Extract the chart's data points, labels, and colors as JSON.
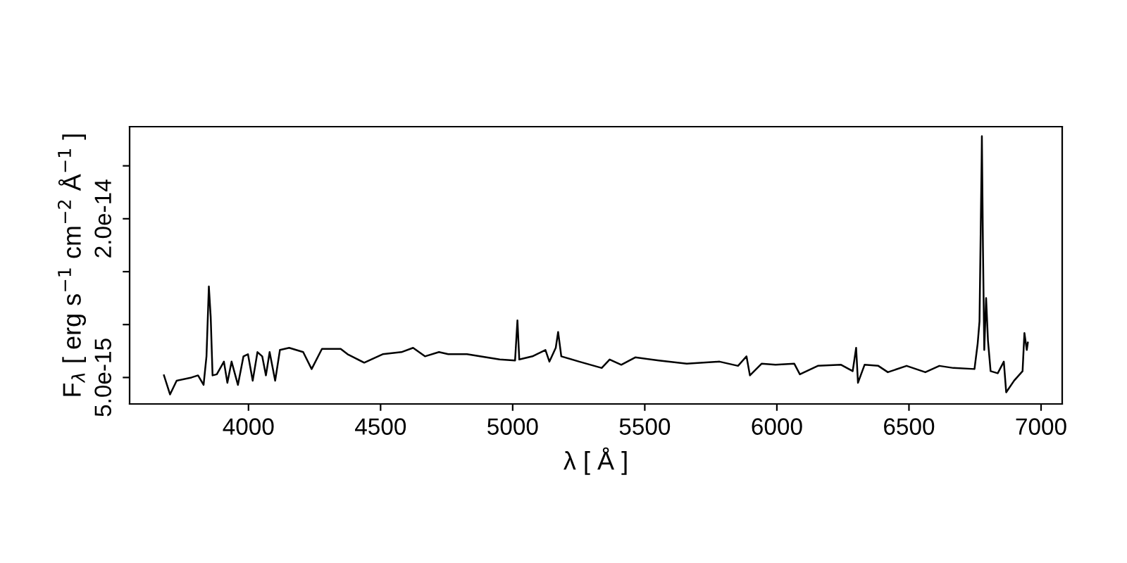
{
  "chart_data": {
    "type": "line",
    "xlabel": "λ [ Å ]",
    "ylabel": "F$_{λ}$ [ erg s$^{−1}$ cm$^{−2}$ Å$^{−1}$ ]",
    "xlim": [
      3550,
      7080
    ],
    "xticks": [
      4000,
      4500,
      5000,
      5500,
      6000,
      6500,
      7000
    ],
    "ylim": [
      2.5e-15,
      2.87e-14
    ],
    "yticks": [
      {
        "value": 5e-15,
        "label": "5.0e-15"
      },
      {
        "value": 1e-14,
        "label": null
      },
      {
        "value": 1.5e-14,
        "label": null
      },
      {
        "value": 2e-14,
        "label": "2.0e-14"
      },
      {
        "value": 2.5e-14,
        "label": null
      }
    ],
    "grid": false,
    "legend": false,
    "marker": "none",
    "line_style": "solid",
    "series": [
      {
        "color": "#000000",
        "x": [
          3680,
          3703,
          3728,
          3784,
          3809,
          3830,
          3841,
          3850,
          3857,
          3864,
          3880,
          3907,
          3920,
          3936,
          3960,
          3981,
          3998,
          4016,
          4034,
          4052,
          4066,
          4080,
          4101,
          4119,
          4154,
          4207,
          4239,
          4278,
          4349,
          4375,
          4438,
          4508,
          4579,
          4623,
          4668,
          4721,
          4756,
          4827,
          4951,
          5009,
          5018,
          5025,
          5075,
          5124,
          5139,
          5163,
          5172,
          5184,
          5252,
          5337,
          5367,
          5411,
          5464,
          5553,
          5659,
          5783,
          5853,
          5885,
          5898,
          5942,
          5995,
          6066,
          6087,
          6155,
          6243,
          6287,
          6300,
          6307,
          6332,
          6384,
          6420,
          6491,
          6562,
          6615,
          6668,
          6748,
          6760,
          6767,
          6775,
          6776,
          6780,
          6785,
          6792,
          6799,
          6809,
          6836,
          6859,
          6868,
          6898,
          6930,
          6937,
          6946,
          6950
        ],
        "values": [
          5.2e-15,
          3.4e-15,
          4.7e-15,
          5e-15,
          5.2e-15,
          4.3e-15,
          7e-15,
          1.36e-14,
          1.07e-14,
          5.2e-15,
          5.3e-15,
          6.5e-15,
          4.5e-15,
          6.5e-15,
          4.3e-15,
          7e-15,
          7.2e-15,
          4.7e-15,
          7.4e-15,
          7e-15,
          5.2e-15,
          7.4e-15,
          4.7e-15,
          7.6e-15,
          7.8e-15,
          7.4e-15,
          5.8e-15,
          7.7e-15,
          7.7e-15,
          7.2e-15,
          6.4e-15,
          7.2e-15,
          7.4e-15,
          7.8e-15,
          7e-15,
          7.4e-15,
          7.2e-15,
          7.2e-15,
          6.7e-15,
          6.6e-15,
          1.04e-14,
          6.7e-15,
          7e-15,
          7.6e-15,
          6.5e-15,
          7.8e-15,
          9.3e-15,
          7e-15,
          6.5e-15,
          5.9e-15,
          6.7e-15,
          6.2e-15,
          6.9e-15,
          6.6e-15,
          6.3e-15,
          6.5e-15,
          6.1e-15,
          7e-15,
          5.2e-15,
          6.3e-15,
          6.2e-15,
          6.3e-15,
          5.3e-15,
          6.1e-15,
          6.2e-15,
          5.6e-15,
          7.8e-15,
          4.5e-15,
          6.2e-15,
          6.1e-15,
          5.5e-15,
          6.1e-15,
          5.5e-15,
          6.1e-15,
          5.9e-15,
          5.8e-15,
          8.2e-15,
          1.03e-14,
          2.54e-14,
          2.78e-14,
          1.74e-14,
          7.6e-15,
          1.25e-14,
          8.5e-15,
          5.6e-15,
          5.4e-15,
          6.5e-15,
          3.6e-15,
          4.7e-15,
          5.6e-15,
          9.2e-15,
          7.6e-15,
          8.3e-15
        ]
      }
    ]
  }
}
